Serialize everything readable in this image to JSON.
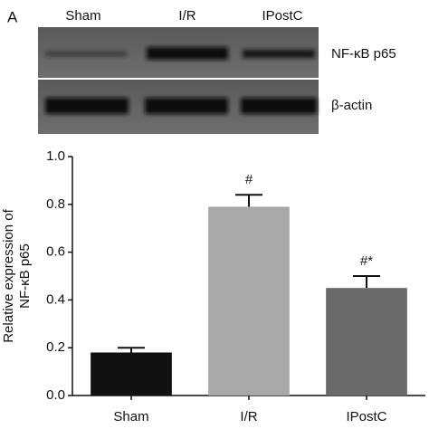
{
  "panel_label": "A",
  "blot": {
    "lanes": [
      "Sham",
      "I/R",
      "IPostC"
    ],
    "rows": [
      "NF-κB p65",
      "β-actin"
    ]
  },
  "chart_data": {
    "type": "bar",
    "ylabel": [
      "Relative expression of",
      "NF-κB p65"
    ],
    "categories": [
      "Sham",
      "I/R",
      "IPostC"
    ],
    "values": [
      0.18,
      0.79,
      0.45
    ],
    "errors": [
      0.02,
      0.05,
      0.05
    ],
    "value_annotations": [
      null,
      "#",
      "#*"
    ],
    "colors": [
      "#111111",
      "#a8a8a8",
      "#6a6a6a"
    ],
    "ylim": [
      0,
      1.0
    ],
    "yticks": [
      {
        "value": 0,
        "label": "0.0"
      },
      0.2,
      0.4,
      0.6,
      0.8,
      {
        "value": 1.0,
        "label": "1.0"
      }
    ]
  }
}
